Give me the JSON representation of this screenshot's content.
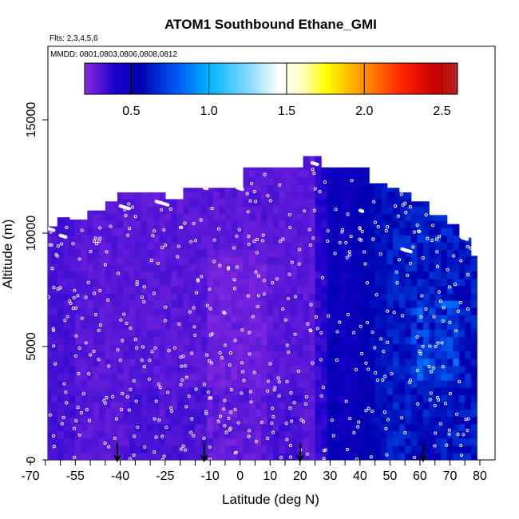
{
  "chart_data": {
    "type": "heatmap",
    "title": "ATOM1 Southbound Ethane_GMI",
    "subtitle_flights": "Flts: 2,3,4,5,6",
    "subtitle_dates": "MMDD: 0801,0803,0806,0808,0812",
    "xlabel": "Latitude (deg N)",
    "ylabel": "Altitude (m)",
    "xlim": [
      -70,
      85
    ],
    "ylim": [
      0,
      17500
    ],
    "x_ticks": [
      -70,
      -55,
      -40,
      -25,
      -10,
      0,
      10,
      20,
      30,
      40,
      50,
      60,
      70,
      80
    ],
    "x_tick_labels": [
      "-70",
      "-55",
      "-40",
      "-25",
      "-10",
      "0",
      "10",
      "20",
      "30",
      "40",
      "50",
      "60",
      "70",
      "80"
    ],
    "x_minor_ticks": [
      -65,
      -60,
      -50,
      -45,
      -35,
      -30,
      -20,
      -15,
      -5,
      5,
      15,
      25,
      35,
      45,
      55,
      65,
      75
    ],
    "y_ticks": [
      0,
      5000,
      10000,
      15000
    ],
    "y_tick_labels": [
      "0",
      "5000",
      "10000",
      "15000"
    ],
    "colorbar": {
      "range": [
        0.2,
        2.6
      ],
      "ticks": [
        0.5,
        1.0,
        1.5,
        2.0,
        2.5
      ],
      "tick_labels": [
        "0.5",
        "1.0",
        "1.5",
        "2.0",
        "2.5"
      ],
      "stops": [
        {
          "v": 0.2,
          "c": "#8a2be2"
        },
        {
          "v": 0.4,
          "c": "#1a00cc"
        },
        {
          "v": 0.55,
          "c": "#0000b0"
        },
        {
          "v": 0.8,
          "c": "#005af5"
        },
        {
          "v": 1.0,
          "c": "#00b4ff"
        },
        {
          "v": 1.25,
          "c": "#7fd8ff"
        },
        {
          "v": 1.45,
          "c": "#ffffff"
        },
        {
          "v": 1.6,
          "c": "#ffffc0"
        },
        {
          "v": 1.75,
          "c": "#ffff00"
        },
        {
          "v": 2.0,
          "c": "#ff9000"
        },
        {
          "v": 2.25,
          "c": "#ff2000"
        },
        {
          "v": 2.45,
          "c": "#c80000"
        },
        {
          "v": 2.6,
          "c": "#b02020"
        }
      ]
    },
    "arrow_latitudes": [
      -41,
      -12,
      20,
      61
    ],
    "top_altitude_profile": {
      "lat": [
        -67,
        -65,
        -64,
        -60,
        -56,
        -51,
        -46,
        -45,
        -42,
        -40,
        -35,
        -30,
        -25,
        -18,
        -15,
        -10,
        -5,
        0,
        2,
        10,
        12,
        14,
        20,
        22,
        24,
        27,
        30,
        35,
        40,
        44,
        47,
        50,
        54,
        57,
        61,
        63,
        66,
        70,
        72,
        73,
        75,
        78
      ],
      "alt": [
        10400,
        10400,
        10300,
        10700,
        10600,
        11000,
        11000,
        11400,
        11400,
        11800,
        11800,
        11800,
        11500,
        12000,
        12000,
        12000,
        12000,
        12000,
        12900,
        12900,
        12900,
        12900,
        12900,
        13400,
        13400,
        12900,
        12900,
        12900,
        12900,
        12200,
        12200,
        12000,
        11800,
        11400,
        11400,
        10800,
        10800,
        10400,
        10400,
        9800,
        9800,
        9000
      ]
    },
    "field_description": "Ethane mixing ratio curtain; values mostly 0.2-0.35 (violet) south of 25N, 0.4-0.6 (dark blue) in 30-50N column, 0.5-0.8 (blue) north of 50N",
    "sample_points_note": "white open circles mark aircraft sample locations"
  }
}
